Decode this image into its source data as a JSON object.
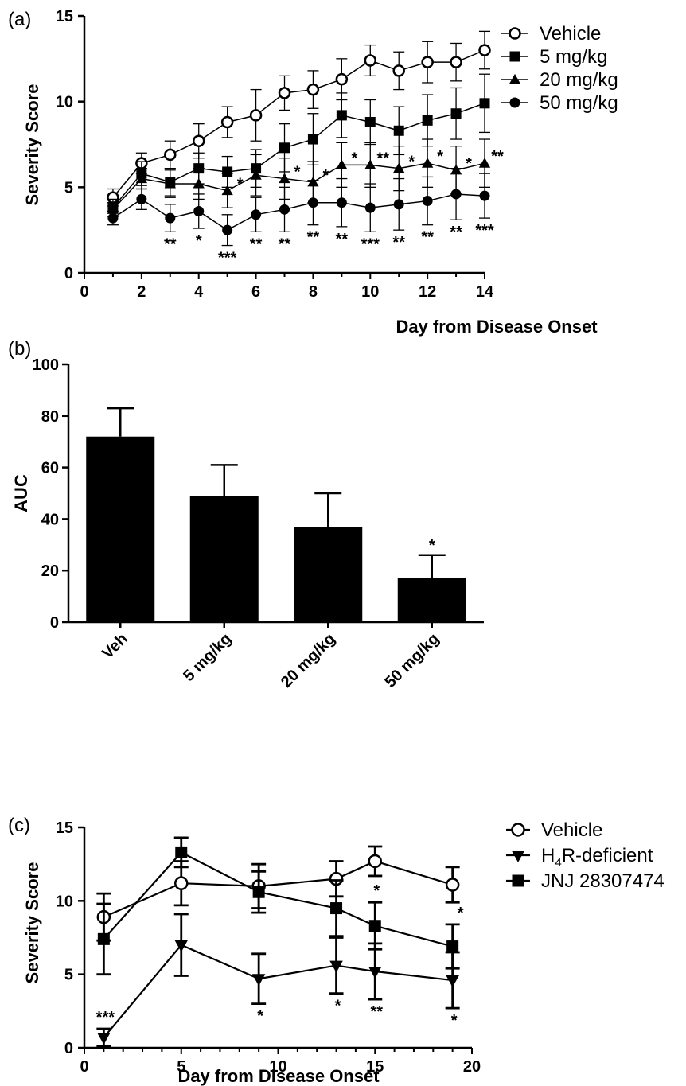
{
  "chart_data": [
    {
      "panel_label": "(a)",
      "type": "line",
      "xlabel": "Day from Disease Onset",
      "ylabel": "Severity Score",
      "xlim": [
        0,
        14
      ],
      "ylim": [
        0,
        15
      ],
      "xticks": [
        "0",
        "2",
        "4",
        "6",
        "8",
        "10",
        "12",
        "14"
      ],
      "yticks": [
        "0",
        "5",
        "10",
        "15"
      ],
      "legend_position": "top-right",
      "x": [
        1,
        2,
        3,
        4,
        5,
        6,
        7,
        8,
        9,
        10,
        11,
        12,
        13,
        14
      ],
      "series": [
        {
          "name": "Vehicle",
          "marker": "open-circle",
          "values": [
            4.4,
            6.4,
            6.9,
            7.7,
            8.8,
            9.2,
            10.5,
            10.7,
            11.3,
            12.4,
            11.8,
            12.3,
            12.3,
            13.0
          ],
          "errors": [
            0.5,
            0.6,
            0.8,
            1.0,
            0.9,
            1.5,
            1.0,
            1.1,
            1.2,
            0.9,
            1.1,
            1.2,
            1.1,
            1.1
          ],
          "sig": []
        },
        {
          "name": "5 mg/kg",
          "marker": "filled-square",
          "values": [
            3.8,
            5.8,
            5.3,
            6.1,
            5.9,
            6.1,
            7.3,
            7.8,
            9.2,
            8.8,
            8.3,
            8.9,
            9.3,
            9.9
          ],
          "errors": [
            0.5,
            0.7,
            0.8,
            0.9,
            0.9,
            1.1,
            1.4,
            1.5,
            1.3,
            1.3,
            1.4,
            1.5,
            1.5,
            1.7
          ],
          "sig": []
        },
        {
          "name": "20 mg/kg",
          "marker": "filled-triangle",
          "values": [
            3.7,
            5.5,
            5.2,
            5.2,
            4.8,
            5.7,
            5.5,
            5.3,
            6.3,
            6.3,
            6.1,
            6.4,
            6.0,
            6.4
          ],
          "errors": [
            0.4,
            0.6,
            0.8,
            0.9,
            1.0,
            1.2,
            1.2,
            1.2,
            1.3,
            1.3,
            1.3,
            1.4,
            1.4,
            1.4
          ],
          "sig": [
            "",
            "",
            "",
            "",
            "*",
            "",
            "*",
            "*",
            "*",
            "**",
            "*",
            "*",
            "*",
            "**"
          ]
        },
        {
          "name": "50 mg/kg",
          "marker": "filled-circle",
          "values": [
            3.2,
            4.3,
            3.2,
            3.6,
            2.5,
            3.4,
            3.7,
            4.1,
            4.1,
            3.8,
            4.0,
            4.2,
            4.6,
            4.5
          ],
          "errors": [
            0.4,
            0.6,
            0.8,
            1.0,
            0.9,
            1.0,
            1.3,
            1.3,
            1.4,
            1.4,
            1.5,
            1.4,
            1.5,
            1.3
          ],
          "sig": [
            "",
            "",
            "**",
            "*",
            "***",
            "**",
            "**",
            "**",
            "**",
            "***",
            "**",
            "**",
            "**",
            "***"
          ]
        }
      ]
    },
    {
      "panel_label": "(b)",
      "type": "bar",
      "ylabel": "AUC",
      "ylim": [
        0,
        100
      ],
      "yticks": [
        "0",
        "20",
        "40",
        "60",
        "80",
        "100"
      ],
      "categories": [
        "Veh",
        "5 mg/kg",
        "20 mg/kg",
        "50 mg/kg"
      ],
      "values": [
        72,
        49,
        37,
        17
      ],
      "errors": [
        11,
        12,
        13,
        9
      ],
      "sig": [
        "",
        "",
        "",
        "*"
      ]
    },
    {
      "panel_label": "(c)",
      "type": "line",
      "xlabel": "Day from Disease Onset",
      "ylabel": "Severity Score",
      "xlim": [
        0,
        20
      ],
      "ylim": [
        0,
        15
      ],
      "xticks": [
        "0",
        "5",
        "10",
        "15",
        "20"
      ],
      "yticks": [
        "0",
        "5",
        "10",
        "15"
      ],
      "legend_position": "top-right",
      "x": [
        1,
        5,
        9,
        13,
        15,
        19
      ],
      "series": [
        {
          "name": "Vehicle",
          "marker": "open-circle",
          "values": [
            8.9,
            11.2,
            11.0,
            11.5,
            12.7,
            11.1
          ],
          "errors": [
            1.6,
            1.5,
            1.5,
            1.2,
            1.0,
            1.2
          ],
          "sig": []
        },
        {
          "name": "H4R-deficient",
          "name_main": "H",
          "name_sub": "4",
          "name_rest": "R-deficient",
          "marker": "filled-triangle-down",
          "values": [
            0.7,
            7.0,
            4.7,
            5.6,
            5.2,
            4.6
          ],
          "errors": [
            0.6,
            2.1,
            1.7,
            1.9,
            1.9,
            1.9
          ],
          "sig": [
            "***",
            "",
            "*",
            "*",
            "**",
            "*"
          ]
        },
        {
          "name": "JNJ 28307474",
          "marker": "filled-square",
          "values": [
            7.4,
            13.3,
            10.6,
            9.5,
            8.3,
            6.9
          ],
          "errors": [
            2.4,
            1.0,
            1.4,
            1.9,
            1.6,
            1.5
          ],
          "sig": [
            "",
            "",
            "",
            "",
            "*",
            "*"
          ]
        }
      ]
    }
  ]
}
